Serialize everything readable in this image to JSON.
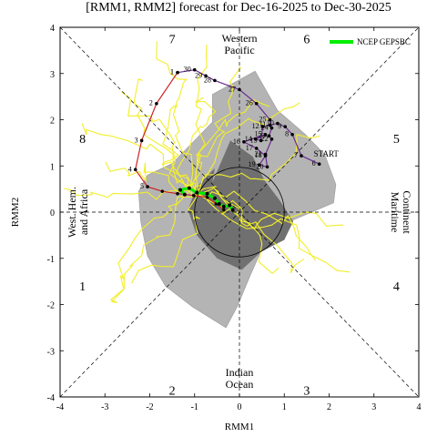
{
  "chart_data": {
    "type": "line",
    "title": "[RMM1, RMM2] forecast for Dec-16-2025 to Dec-30-2025",
    "xlabel": "RMM1",
    "ylabel": "RMM2",
    "xlim": [
      -4,
      4
    ],
    "ylim": [
      -4,
      4
    ],
    "x_ticks": [
      "-4",
      "-3",
      "-2",
      "-1",
      "0",
      "1",
      "2",
      "3",
      "4"
    ],
    "y_ticks": [
      "-4",
      "-3",
      "-2",
      "-1",
      "0",
      "1",
      "2",
      "3",
      "4"
    ],
    "phase_labels": [
      {
        "text": "1",
        "x": -3.5,
        "y": -1.6
      },
      {
        "text": "2",
        "x": -1.5,
        "y": -3.85
      },
      {
        "text": "3",
        "x": 1.5,
        "y": -3.85
      },
      {
        "text": "4",
        "x": 3.5,
        "y": -1.6
      },
      {
        "text": "5",
        "x": 3.5,
        "y": 1.6
      },
      {
        "text": "6",
        "x": 1.5,
        "y": 3.75
      },
      {
        "text": "7",
        "x": -1.5,
        "y": 3.75
      },
      {
        "text": "8",
        "x": -3.5,
        "y": 1.6
      }
    ],
    "region_labels": {
      "top": [
        "Western",
        "Pacific"
      ],
      "bottom": [
        "Indian",
        "Ocean"
      ],
      "left": [
        "West. Hem.",
        "and Africa"
      ],
      "right": [
        "Maritime",
        "Continent"
      ]
    },
    "legend": {
      "label": "NCEP GEPSBC",
      "color": "#00ee00",
      "position": "top-right"
    },
    "start_label": "START",
    "observed_series": {
      "name": "",
      "color": "#6a2c91",
      "points": [
        {
          "x": 1.78,
          "y": 1.04,
          "label": "6"
        },
        {
          "x": 1.38,
          "y": 1.22,
          "label": "7"
        },
        {
          "x": 1.18,
          "y": 1.68,
          "label": "8"
        },
        {
          "x": 1.02,
          "y": 1.85,
          "label": "9"
        },
        {
          "x": 0.85,
          "y": 1.92,
          "label": "10"
        },
        {
          "x": 0.68,
          "y": 1.88,
          "label": "11"
        },
        {
          "x": 0.52,
          "y": 1.85,
          "label": "12"
        },
        {
          "x": 0.48,
          "y": 1.55,
          "label": "13"
        },
        {
          "x": 0.36,
          "y": 1.58,
          "label": "14"
        },
        {
          "x": 0.58,
          "y": 1.68,
          "label": "15"
        },
        {
          "x": 0.1,
          "y": 1.52,
          "label": "16"
        },
        {
          "x": 0.38,
          "y": 1.38,
          "label": "17"
        },
        {
          "x": 0.58,
          "y": 1.22,
          "label": "18"
        },
        {
          "x": 0.44,
          "y": 1.02,
          "label": "19"
        },
        {
          "x": 0.62,
          "y": 0.98,
          "label": "20"
        },
        {
          "x": 0.58,
          "y": 1.25,
          "label": "21"
        },
        {
          "x": 0.72,
          "y": 1.58,
          "label": "22"
        },
        {
          "x": 0.66,
          "y": 1.65,
          "label": "23"
        },
        {
          "x": 0.72,
          "y": 1.82,
          "label": "24"
        },
        {
          "x": 0.68,
          "y": 2.0,
          "label": "25"
        },
        {
          "x": 0.38,
          "y": 2.35,
          "label": "26"
        },
        {
          "x": 0.0,
          "y": 2.65,
          "label": "27"
        },
        {
          "x": -0.55,
          "y": 2.85,
          "label": "28"
        },
        {
          "x": -0.75,
          "y": 2.95,
          "label": "29"
        },
        {
          "x": -1.0,
          "y": 3.08,
          "label": "30"
        },
        {
          "x": -1.38,
          "y": 3.02,
          "label": "1"
        }
      ]
    },
    "observed_series_2": {
      "name": "",
      "color": "#cc2222",
      "points": [
        {
          "x": -1.38,
          "y": 3.02,
          "label": "1"
        },
        {
          "x": -1.85,
          "y": 2.35,
          "label": "2"
        },
        {
          "x": -2.18,
          "y": 1.55,
          "label": "3"
        },
        {
          "x": -2.32,
          "y": 0.92,
          "label": "4"
        },
        {
          "x": -2.05,
          "y": 0.55,
          "label": "5"
        },
        {
          "x": -1.72,
          "y": 0.45,
          "label": ""
        },
        {
          "x": -1.38,
          "y": 0.4,
          "label": ""
        },
        {
          "x": -1.02,
          "y": 0.36,
          "label": ""
        },
        {
          "x": -0.72,
          "y": 0.32,
          "label": ""
        },
        {
          "x": -0.52,
          "y": 0.18,
          "label": ""
        },
        {
          "x": -0.35,
          "y": 0.05,
          "label": ""
        }
      ]
    },
    "ensemble_mean": {
      "name": "NCEP GEPSBC",
      "color": "#00ee00",
      "points": [
        {
          "x": -1.22,
          "y": 0.38
        },
        {
          "x": -1.32,
          "y": 0.48
        },
        {
          "x": -1.12,
          "y": 0.52
        },
        {
          "x": -0.95,
          "y": 0.42
        },
        {
          "x": -0.72,
          "y": 0.4
        },
        {
          "x": -0.55,
          "y": 0.3
        },
        {
          "x": -0.45,
          "y": 0.18
        },
        {
          "x": -0.35,
          "y": 0.12
        },
        {
          "x": -0.22,
          "y": 0.15
        },
        {
          "x": -0.15,
          "y": 0.05
        }
      ]
    },
    "ensemble_members_note": ""
  }
}
